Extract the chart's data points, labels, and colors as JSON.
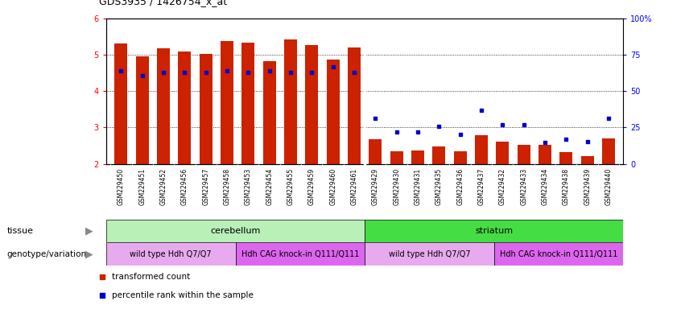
{
  "title": "GDS3935 / 1426754_x_at",
  "samples": [
    "GSM229450",
    "GSM229451",
    "GSM229452",
    "GSM229456",
    "GSM229457",
    "GSM229458",
    "GSM229453",
    "GSM229454",
    "GSM229455",
    "GSM229459",
    "GSM229460",
    "GSM229461",
    "GSM229429",
    "GSM229430",
    "GSM229431",
    "GSM229435",
    "GSM229436",
    "GSM229437",
    "GSM229432",
    "GSM229433",
    "GSM229434",
    "GSM229438",
    "GSM229439",
    "GSM229440"
  ],
  "bar_values": [
    5.32,
    4.95,
    5.18,
    5.1,
    5.02,
    5.38,
    5.34,
    4.82,
    5.42,
    5.28,
    4.87,
    5.2,
    2.68,
    2.35,
    2.36,
    2.48,
    2.35,
    2.78,
    2.62,
    2.52,
    2.52,
    2.33,
    2.2,
    2.7
  ],
  "percentile_values": [
    4.55,
    4.42,
    4.52,
    4.52,
    4.52,
    4.55,
    4.52,
    4.55,
    4.52,
    4.52,
    4.68,
    4.52,
    3.25,
    2.88,
    2.88,
    3.02,
    2.82,
    3.48,
    3.08,
    3.08,
    2.58,
    2.68,
    2.62,
    3.25
  ],
  "bar_bottom": 2.0,
  "ylim": [
    2.0,
    6.0
  ],
  "yticks_left": [
    2,
    3,
    4,
    5,
    6
  ],
  "yticks_right": [
    0,
    25,
    50,
    75,
    100
  ],
  "bar_color": "#cc2200",
  "dot_color": "#0000cc",
  "plot_bg_color": "#ffffff",
  "xtick_bg_color": "#d4d4d4",
  "tissue_groups": [
    {
      "label": "cerebellum",
      "start": 0,
      "end": 11,
      "color": "#b8f0b8"
    },
    {
      "label": "striatum",
      "start": 12,
      "end": 23,
      "color": "#44dd44"
    }
  ],
  "genotype_groups": [
    {
      "label": "wild type Hdh Q7/Q7",
      "start": 0,
      "end": 5,
      "color": "#e8aaee"
    },
    {
      "label": "Hdh CAG knock-in Q111/Q111",
      "start": 6,
      "end": 11,
      "color": "#dd66ee"
    },
    {
      "label": "wild type Hdh Q7/Q7",
      "start": 12,
      "end": 17,
      "color": "#e8aaee"
    },
    {
      "label": "Hdh CAG knock-in Q111/Q111",
      "start": 18,
      "end": 23,
      "color": "#dd66ee"
    }
  ],
  "tissue_label": "tissue",
  "genotype_label": "genotype/variation",
  "legend_items": [
    {
      "label": "transformed count",
      "color": "#cc2200"
    },
    {
      "label": "percentile rank within the sample",
      "color": "#0000cc"
    }
  ],
  "n_samples": 24,
  "sep_after": 11
}
